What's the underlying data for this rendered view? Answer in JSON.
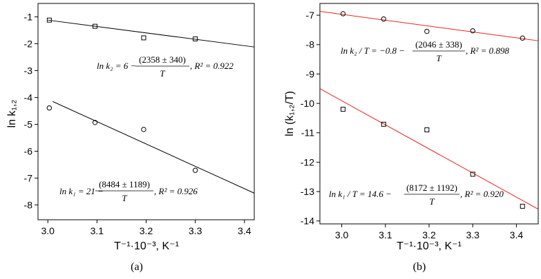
{
  "chart_data": [
    {
      "type": "scatter",
      "panel_label": "(a)",
      "xlabel": "T⁻¹·10⁻³, K⁻¹",
      "ylabel": "ln k₁,₂",
      "xlim": [
        2.98,
        3.42
      ],
      "ylim": [
        -8.55,
        -0.5
      ],
      "xticks": [
        "3.0",
        "3.1",
        "3.2",
        "3.3",
        "3.4"
      ],
      "xtick_values": [
        3.0,
        3.1,
        3.2,
        3.3,
        3.4
      ],
      "yticks": [
        "-1",
        "-2",
        "-3",
        "-4",
        "-5",
        "-6",
        "-7",
        "-8"
      ],
      "ytick_values": [
        -1,
        -2,
        -3,
        -4,
        -5,
        -6,
        -7,
        -8
      ],
      "series": [
        {
          "marker": "square",
          "color": "#000000",
          "x": [
            3.003,
            3.096,
            3.195,
            3.3
          ],
          "y": [
            -1.12,
            -1.35,
            -1.78,
            -1.82
          ],
          "fit": {
            "x": [
              3.0,
              3.42
            ],
            "y": [
              -1.12,
              -2.12
            ]
          }
        },
        {
          "marker": "circle",
          "color": "#000000",
          "x": [
            3.003,
            3.096,
            3.195,
            3.3
          ],
          "y": [
            -4.39,
            -4.93,
            -5.19,
            -6.71
          ],
          "fit": {
            "x": [
              3.01,
              3.42
            ],
            "y": [
              -4.15,
              -7.56
            ]
          }
        }
      ],
      "annotations": [
        {
          "lhs": "ln k₂ = 6 −",
          "num": "(2358 ± 340)",
          "den": "T",
          "tail": ", R² = 0.922"
        },
        {
          "lhs": "ln k₁ = 21 −",
          "num": "(8484 ± 1189)",
          "den": "T",
          "tail": ", R² = 0.926"
        }
      ]
    },
    {
      "type": "scatter",
      "panel_label": "(b)",
      "xlabel": "T⁻¹·10⁻³, K⁻¹",
      "ylabel": "ln (k₁,₂/T)",
      "xlim": [
        2.95,
        3.45
      ],
      "ylim": [
        -14.1,
        -6.6
      ],
      "xticks": [
        "3.0",
        "3.1",
        "3.2",
        "3.3",
        "3.4"
      ],
      "xtick_values": [
        3.0,
        3.1,
        3.2,
        3.3,
        3.4
      ],
      "yticks": [
        "-7",
        "-8",
        "-9",
        "-10",
        "-11",
        "-12",
        "-13",
        "-14"
      ],
      "ytick_values": [
        -7,
        -8,
        -9,
        -10,
        -11,
        -12,
        -13,
        -14
      ],
      "series": [
        {
          "marker": "circle",
          "color": "#000000",
          "fit_color": "#e8231e",
          "x": [
            3.003,
            3.096,
            3.195,
            3.3,
            3.414
          ],
          "y": [
            -6.95,
            -7.13,
            -7.55,
            -7.53,
            -7.78
          ],
          "fit": {
            "x": [
              2.95,
              3.45
            ],
            "y": [
              -6.87,
              -7.87
            ]
          }
        },
        {
          "marker": "square",
          "color": "#000000",
          "fit_color": "#e8231e",
          "x": [
            3.003,
            3.096,
            3.195,
            3.3,
            3.414
          ],
          "y": [
            -10.2,
            -10.71,
            -10.9,
            -12.41,
            -13.5
          ],
          "fit": {
            "x": [
              2.95,
              3.45
            ],
            "y": [
              -9.5,
              -13.6
            ]
          }
        }
      ],
      "annotations": [
        {
          "lhs": "ln k₂ / T = −0.8 −",
          "num": "(2046 ± 338)",
          "den": "T",
          "tail": ", R² = 0.898"
        },
        {
          "lhs": "ln k₁ / T = 14.6 −",
          "num": "(8172 ± 1192)",
          "den": "T",
          "tail": ", R² = 0.920"
        }
      ]
    }
  ]
}
